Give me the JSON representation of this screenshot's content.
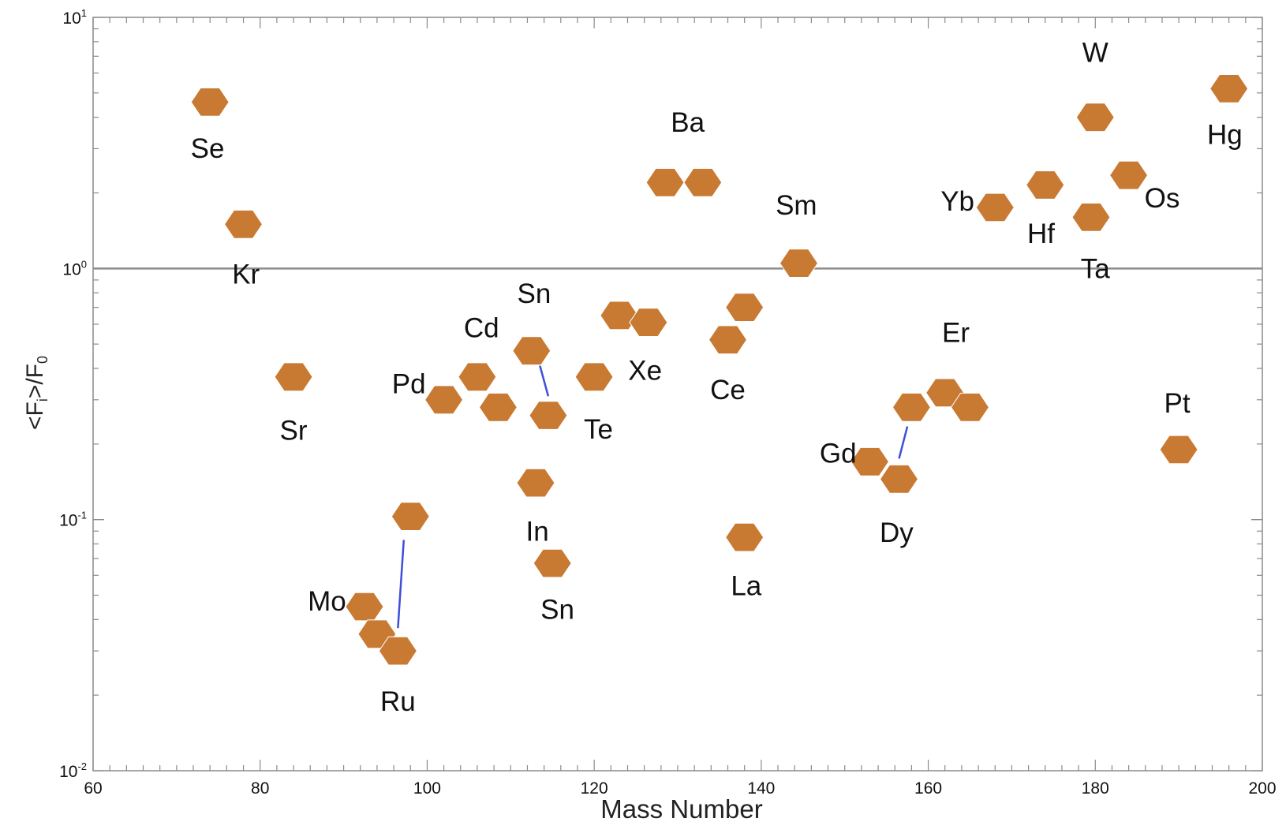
{
  "chart_data": {
    "type": "scatter",
    "xlabel": "Mass Number",
    "ylabel": {
      "main": "<F",
      "sub1": "i",
      "mid": ">/F",
      "sub2": "0"
    },
    "x_range": [
      60,
      200
    ],
    "y_range": [
      0.01,
      10
    ],
    "y_scale": "log",
    "x_ticks": [
      "60",
      "80",
      "100",
      "120",
      "140",
      "160",
      "180",
      "200"
    ],
    "y_ticks": [
      {
        "base": "10",
        "exp": "1"
      },
      {
        "base": "10",
        "exp": "0"
      },
      {
        "base": "10",
        "exp": "-1"
      },
      {
        "base": "10",
        "exp": "-2"
      }
    ],
    "reference_line_y": 1,
    "marker_color": "#c87a33",
    "line_color": "#3d4fd8",
    "points": [
      {
        "x": 74,
        "y": 4.6
      },
      {
        "x": 78,
        "y": 1.5
      },
      {
        "x": 84,
        "y": 0.37
      },
      {
        "x": 92.5,
        "y": 0.045
      },
      {
        "x": 94,
        "y": 0.035
      },
      {
        "x": 96.5,
        "y": 0.03
      },
      {
        "x": 98,
        "y": 0.103
      },
      {
        "x": 102,
        "y": 0.3
      },
      {
        "x": 106,
        "y": 0.37
      },
      {
        "x": 108.5,
        "y": 0.28
      },
      {
        "x": 112.5,
        "y": 0.47
      },
      {
        "x": 113,
        "y": 0.14
      },
      {
        "x": 114.5,
        "y": 0.26
      },
      {
        "x": 115,
        "y": 0.067
      },
      {
        "x": 120,
        "y": 0.37
      },
      {
        "x": 123,
        "y": 0.65
      },
      {
        "x": 126.5,
        "y": 0.61
      },
      {
        "x": 128.5,
        "y": 2.2
      },
      {
        "x": 133,
        "y": 2.2
      },
      {
        "x": 136,
        "y": 0.52
      },
      {
        "x": 138,
        "y": 0.7
      },
      {
        "x": 138,
        "y": 0.085
      },
      {
        "x": 144.5,
        "y": 1.05
      },
      {
        "x": 153,
        "y": 0.17
      },
      {
        "x": 156.5,
        "y": 0.145
      },
      {
        "x": 158,
        "y": 0.28
      },
      {
        "x": 162,
        "y": 0.32
      },
      {
        "x": 165,
        "y": 0.28
      },
      {
        "x": 168,
        "y": 1.75
      },
      {
        "x": 174,
        "y": 2.15
      },
      {
        "x": 179.5,
        "y": 1.6
      },
      {
        "x": 180,
        "y": 4.0
      },
      {
        "x": 184,
        "y": 2.35
      },
      {
        "x": 190,
        "y": 0.19
      },
      {
        "x": 196,
        "y": 5.2
      }
    ],
    "connectors": [
      {
        "x1": 97.2,
        "y1": 0.083,
        "x2": 96.5,
        "y2": 0.037
      },
      {
        "x1": 113.5,
        "y1": 0.41,
        "x2": 114.5,
        "y2": 0.31
      },
      {
        "x1": 157.5,
        "y1": 0.235,
        "x2": 156.5,
        "y2": 0.175
      }
    ],
    "annotations": [
      {
        "text": "Se",
        "x": 73.7,
        "y": 2.95
      },
      {
        "text": "Kr",
        "x": 78.3,
        "y": 0.93
      },
      {
        "text": "Sr",
        "x": 84,
        "y": 0.222
      },
      {
        "text": "Mo",
        "x": 88,
        "y": 0.0465
      },
      {
        "text": "Ru",
        "x": 96.5,
        "y": 0.0185
      },
      {
        "text": "Pd",
        "x": 97.8,
        "y": 0.34
      },
      {
        "text": "Cd",
        "x": 106.5,
        "y": 0.57
      },
      {
        "text": "Sn",
        "x": 112.8,
        "y": 0.78
      },
      {
        "text": "In",
        "x": 113.2,
        "y": 0.088
      },
      {
        "text": "Sn",
        "x": 115.6,
        "y": 0.043
      },
      {
        "text": "Te",
        "x": 120.5,
        "y": 0.225
      },
      {
        "text": "Xe",
        "x": 126.1,
        "y": 0.385
      },
      {
        "text": "Ba",
        "x": 131.2,
        "y": 3.75
      },
      {
        "text": "Ce",
        "x": 136,
        "y": 0.322
      },
      {
        "text": "La",
        "x": 138.2,
        "y": 0.0535
      },
      {
        "text": "Sm",
        "x": 144.2,
        "y": 1.75
      },
      {
        "text": "Gd",
        "x": 149.2,
        "y": 0.18
      },
      {
        "text": "Dy",
        "x": 156.2,
        "y": 0.087
      },
      {
        "text": "Er",
        "x": 163.3,
        "y": 0.545
      },
      {
        "text": "Yb",
        "x": 163.5,
        "y": 1.82
      },
      {
        "text": "Hf",
        "x": 173.5,
        "y": 1.35
      },
      {
        "text": "Ta",
        "x": 180,
        "y": 0.98
      },
      {
        "text": "W",
        "x": 180,
        "y": 7.1
      },
      {
        "text": "Os",
        "x": 188,
        "y": 1.87
      },
      {
        "text": "Pt",
        "x": 189.8,
        "y": 0.285
      },
      {
        "text": "Hg",
        "x": 195.5,
        "y": 3.35
      }
    ]
  }
}
